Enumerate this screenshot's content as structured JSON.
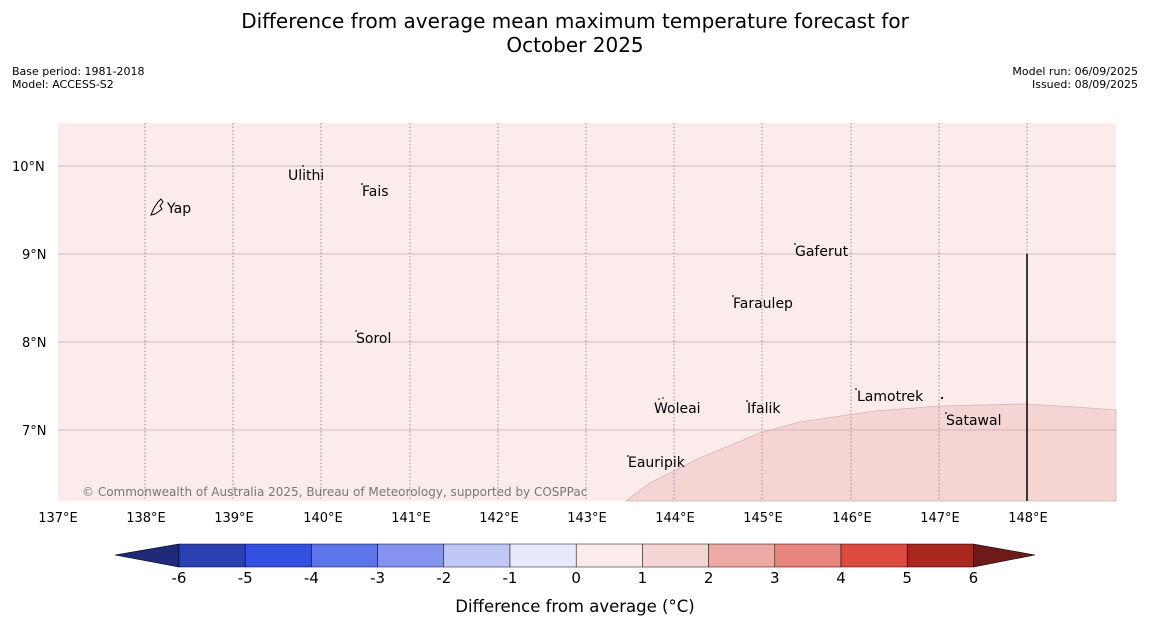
{
  "title_line1": "Difference from average mean maximum temperature forecast for",
  "title_line2": "October 2025",
  "base_period": "Base period: 1981-2018",
  "model": "Model: ACCESS-S2",
  "model_run": "Model run: 06/09/2025",
  "issued": "Issued: 08/09/2025",
  "credit": "© Commonwealth of Australia 2025, Bureau of Meteorology, supported by COSPPac",
  "map": {
    "lon_ticks": [
      "137°E",
      "138°E",
      "139°E",
      "140°E",
      "141°E",
      "142°E",
      "143°E",
      "144°E",
      "145°E",
      "146°E",
      "147°E",
      "148°E"
    ],
    "lat_ticks": [
      "10°N",
      "9°N",
      "8°N",
      "7°N"
    ],
    "background_class": "0 to 1",
    "warm_region_class": "1 to 2",
    "places": [
      {
        "name": "Yap"
      },
      {
        "name": "Ulithi"
      },
      {
        "name": "Fais"
      },
      {
        "name": "Gaferut"
      },
      {
        "name": "Faraulep"
      },
      {
        "name": "Sorol"
      },
      {
        "name": "Lamotrek"
      },
      {
        "name": "Woleai"
      },
      {
        "name": "Ifalik"
      },
      {
        "name": "Satawal"
      },
      {
        "name": "Eauripik"
      }
    ]
  },
  "colorbar": {
    "label": "Difference from average (°C)",
    "ticks": [
      "-6",
      "-5",
      "-4",
      "-3",
      "-2",
      "-1",
      "0",
      "1",
      "2",
      "3",
      "4",
      "5",
      "6"
    ],
    "colors": {
      "below_-6": "#1e2a78",
      "-6_-5": "#2a3fb0",
      "-5_-4": "#3450e0",
      "-4_-3": "#5c75e8",
      "-3_-2": "#8593ee",
      "-2_-1": "#c2c8f5",
      "-1_0": "#e8eafb",
      "0_1": "#fbebeb",
      "1_2": "#f5d4d4",
      "2_3": "#eeaba6",
      "3_4": "#e8857e",
      "4_5": "#dc4a40",
      "5_6": "#a82820",
      "above_6": "#6e1a18"
    }
  }
}
